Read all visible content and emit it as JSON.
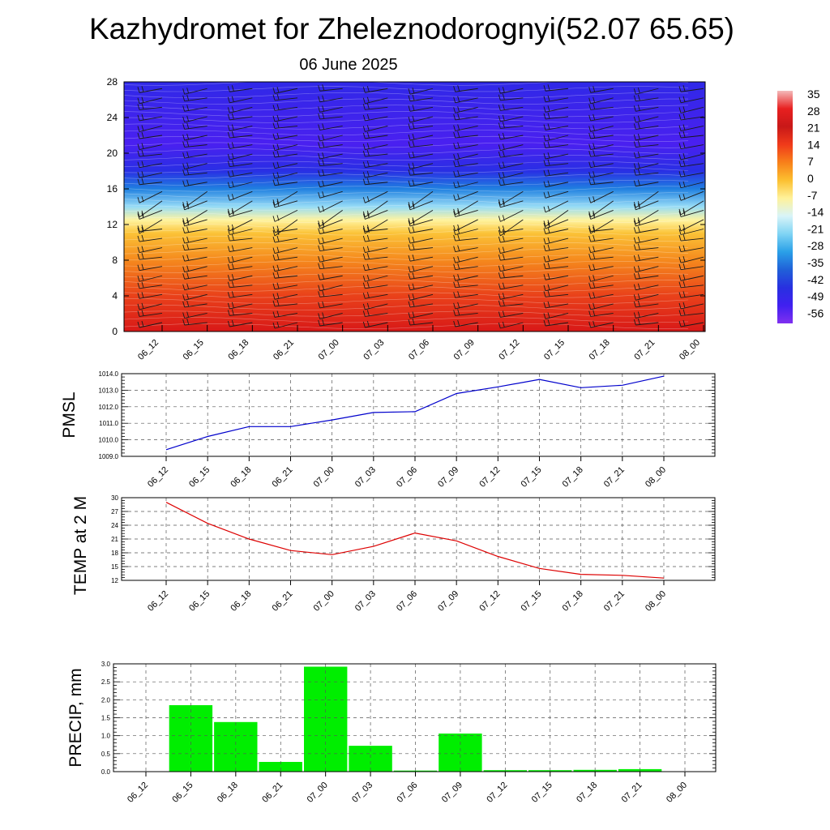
{
  "header": {
    "title": "Kazhydromet for Zheleznodorognyi(52.07 65.65)",
    "subtitle": "06 June 2025"
  },
  "time_labels": [
    "06_12",
    "06_15",
    "06_18",
    "06_21",
    "07_00",
    "07_03",
    "07_06",
    "07_09",
    "07_12",
    "07_15",
    "07_18",
    "07_21",
    "08_00"
  ],
  "chart_data": [
    {
      "type": "heatmap",
      "title": "",
      "xlabel": "",
      "ylabel": "",
      "x": [
        "06_12",
        "06_15",
        "06_18",
        "06_21",
        "07_00",
        "07_03",
        "07_06",
        "07_09",
        "07_12",
        "07_15",
        "07_18",
        "07_21",
        "08_00"
      ],
      "y_ticks": [
        "0",
        "4",
        "8",
        "12",
        "16",
        "20",
        "24",
        "28"
      ],
      "ylim": [
        0,
        28
      ],
      "temperature_profile": [
        {
          "height": 0,
          "value": 28
        },
        {
          "height": 4,
          "value": 20
        },
        {
          "height": 8,
          "value": 10
        },
        {
          "height": 11,
          "value": 2
        },
        {
          "height": 12.5,
          "value": -7
        },
        {
          "height": 14,
          "value": -20
        },
        {
          "height": 16,
          "value": -35
        },
        {
          "height": 18,
          "value": -48
        },
        {
          "height": 21,
          "value": -56
        },
        {
          "height": 26,
          "value": -52
        },
        {
          "height": 28,
          "value": -50
        }
      ],
      "wind_barbs": true,
      "colorbar": {
        "labels": [
          "35",
          "28",
          "21",
          "14",
          "7",
          "0",
          "-7",
          "-14",
          "-21",
          "-28",
          "-35",
          "-42",
          "-49",
          "-56"
        ],
        "colors": [
          "#f4b9b9",
          "#e82020",
          "#c81818",
          "#f03a1a",
          "#f8801a",
          "#fcc030",
          "#fff29a",
          "#d8f4f8",
          "#7fd4f4",
          "#2aa0e8",
          "#2060d8",
          "#2830e0",
          "#4020f0",
          "#8030f0"
        ]
      }
    },
    {
      "type": "line",
      "ylabel": "PMSL",
      "x": [
        "06_12",
        "06_15",
        "06_18",
        "06_21",
        "07_00",
        "07_03",
        "07_06",
        "07_09",
        "07_12",
        "07_15",
        "07_18",
        "07_21",
        "08_00"
      ],
      "series": [
        {
          "values": [
            1009.4,
            1010.2,
            1010.8,
            1010.8,
            1011.2,
            1011.65,
            1011.7,
            1012.8,
            1013.2,
            1013.65,
            1013.15,
            1013.3,
            1013.85
          ],
          "color": "#0000cc"
        }
      ],
      "ylim": [
        1009.0,
        1014.0
      ],
      "y_ticks": [
        "1009.0",
        "1010.0",
        "1011.0",
        "1012.0",
        "1013.0",
        "1014.0"
      ],
      "grid": true
    },
    {
      "type": "line",
      "ylabel": "TEMP at 2 M",
      "x": [
        "06_12",
        "06_15",
        "06_18",
        "06_21",
        "07_00",
        "07_03",
        "07_06",
        "07_09",
        "07_12",
        "07_15",
        "07_18",
        "07_21",
        "08_00"
      ],
      "series": [
        {
          "values": [
            29.0,
            24.4,
            21.0,
            18.5,
            17.6,
            19.4,
            22.3,
            20.6,
            17.2,
            14.6,
            13.3,
            13.1,
            12.5
          ],
          "color": "#dd0000"
        }
      ],
      "ylim": [
        12,
        30
      ],
      "y_ticks": [
        "12",
        "15",
        "18",
        "21",
        "24",
        "27",
        "30"
      ],
      "grid": true
    },
    {
      "type": "bar",
      "ylabel": "PRECIP, mm",
      "x": [
        "06_12",
        "06_15",
        "06_18",
        "06_21",
        "07_00",
        "07_03",
        "07_06",
        "07_09",
        "07_12",
        "07_15",
        "07_18",
        "07_21",
        "08_00"
      ],
      "values": [
        0,
        1.85,
        1.38,
        0.27,
        2.92,
        0.72,
        0.03,
        1.06,
        0.04,
        0.04,
        0.05,
        0.07,
        0
      ],
      "color": "#00ee00",
      "ylim": [
        0,
        3.0
      ],
      "y_ticks": [
        "0.0",
        "0.5",
        "1.0",
        "1.5",
        "2.0",
        "2.5",
        "3.0"
      ],
      "grid": true
    }
  ]
}
